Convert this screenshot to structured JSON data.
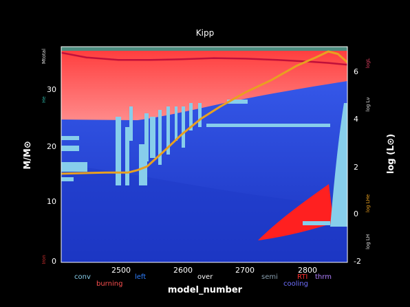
{
  "chart_data": {
    "type": "area",
    "title": "Kipp",
    "xlabel": "model_number",
    "ylabel_left": "M/M⊙",
    "ylabel_right": "log (L⊙)",
    "x_ticks": [
      "2500",
      "2600",
      "2700",
      "2800"
    ],
    "y_left_ticks": [
      "0",
      "10",
      "20",
      "30"
    ],
    "y_right_ticks": [
      "-2",
      "0",
      "2",
      "4",
      "6"
    ],
    "xlim": [
      2410,
      2860
    ],
    "ylim_left": [
      0,
      36
    ],
    "ylim_right": [
      -2,
      7
    ],
    "left_axis_labels": [
      "Mtotal",
      "He",
      "Iron"
    ],
    "right_axis_labels": [
      "logL",
      "log Lν",
      "log LHe",
      "log LH"
    ],
    "bottom_legend": [
      {
        "label": "conv",
        "color": "#87ceeb"
      },
      {
        "label": "burning",
        "color": "#ff5050"
      },
      {
        "label": "left",
        "color": "#2e7fff"
      },
      {
        "label": "over",
        "color": "#ffffff"
      },
      {
        "label": "semi",
        "color": "#8aa0b0"
      },
      {
        "label": "RTI",
        "color": "#ff3030"
      },
      {
        "label": "cooling",
        "color": "#6f6fff"
      },
      {
        "label": "thrm",
        "color": "#b080ff"
      }
    ],
    "series": [
      {
        "name": "logL",
        "axis": "right",
        "color": "#e8a020",
        "x": [
          2410,
          2480,
          2515,
          2530,
          2545,
          2570,
          2600,
          2630,
          2660,
          2700,
          2740,
          2780,
          2810,
          2830,
          2845,
          2860
        ],
        "values": [
          1.7,
          1.75,
          1.75,
          1.85,
          2.0,
          2.6,
          3.35,
          4.0,
          4.5,
          5.1,
          5.6,
          6.2,
          6.55,
          6.8,
          6.7,
          6.35
        ]
      },
      {
        "name": "Mtotal",
        "axis": "left",
        "color": "#c0103a",
        "x": [
          2410,
          2450,
          2500,
          2550,
          2600,
          2650,
          2700,
          2750,
          2800,
          2830,
          2860
        ],
        "values": [
          35.0,
          34.2,
          33.8,
          33.8,
          33.9,
          34.1,
          34.0,
          33.8,
          33.5,
          33.3,
          33.0
        ]
      }
    ],
    "colors": {
      "background": "#000000",
      "plot_base": "#2244d0",
      "envelope": "#ff6060",
      "convection": "#87ceeb",
      "luminosity_line": "#e8a020",
      "mass_line": "#c0103a",
      "axis_label_left": "#2aa99a",
      "axis_label_iron": "#d03030",
      "axis_label_logL": "#e04060"
    },
    "grid": false
  }
}
